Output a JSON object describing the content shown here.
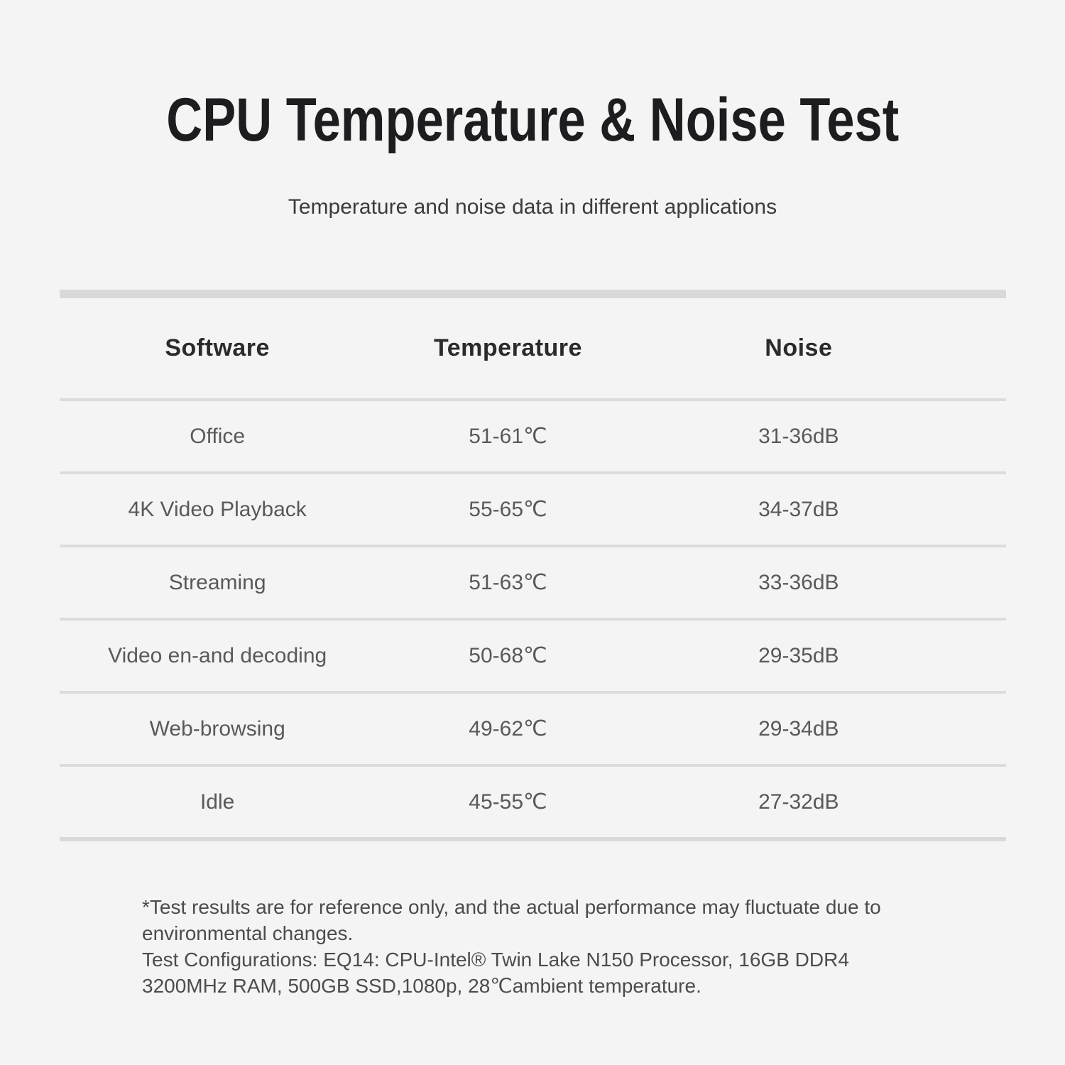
{
  "chart_data": {
    "type": "table",
    "title": "CPU Temperature & Noise Test",
    "subtitle": "Temperature and noise data in different applications",
    "columns": [
      "Software",
      "Temperature",
      "Noise"
    ],
    "rows": [
      [
        "Office",
        "51-61℃",
        "31-36dB"
      ],
      [
        "4K Video Playback",
        "55-65℃",
        "34-37dB"
      ],
      [
        "Streaming",
        "51-63℃",
        "33-36dB"
      ],
      [
        "Video en-and decoding",
        "50-68℃",
        "29-35dB"
      ],
      [
        "Web-browsing",
        "49-62℃",
        "29-34dB"
      ],
      [
        "Idle",
        "45-55℃",
        "27-32dB"
      ]
    ],
    "layout_hints": {
      "header_row_bold": true,
      "heavy_rule_top_and_bottom": true,
      "thin_rules_between_rows": true,
      "all_cells_centered": true
    }
  },
  "footnote": {
    "lines": [
      "*Test results are for reference only, and the actual performance may fluctuate due to",
      "environmental changes.",
      "Test Configurations: EQ14: CPU-Intel® Twin Lake N150 Processor, 16GB DDR4",
      "3200MHz RAM, 500GB SSD,1080p, 28℃ambient temperature."
    ]
  },
  "colors": {
    "background": "#f4f4f4",
    "rule_heavy": "#d9d9d9",
    "rule_light": "#dcdcdc",
    "title_text": "#1d1d1f",
    "subtitle_text": "#3c3c3c",
    "header_text": "#2b2b2b",
    "cell_text": "#58595b",
    "footnote_text": "#4c4c4c"
  }
}
